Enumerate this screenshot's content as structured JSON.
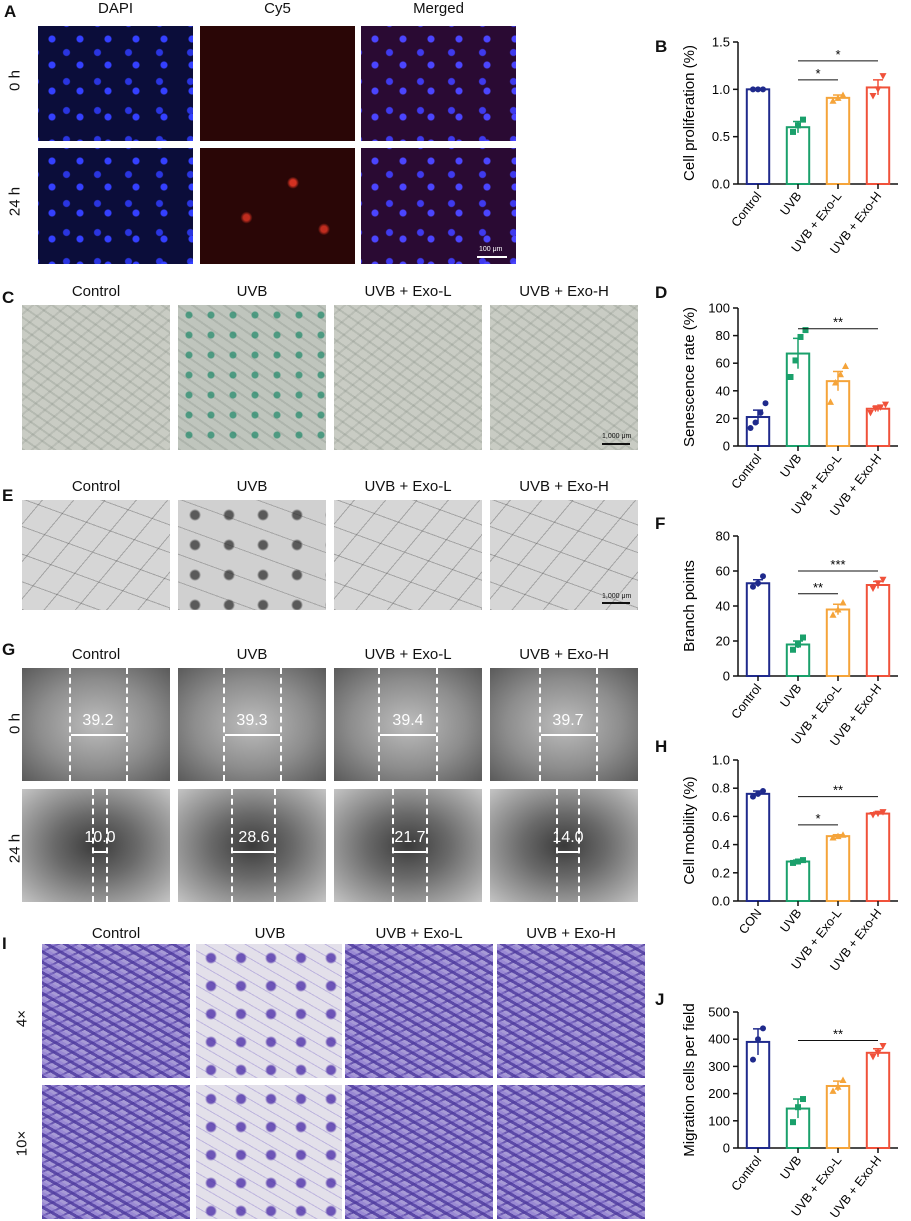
{
  "panel_labels": [
    "A",
    "B",
    "C",
    "D",
    "E",
    "F",
    "G",
    "H",
    "I",
    "J"
  ],
  "panel_a": {
    "columns": [
      "DAPI",
      "Cy5",
      "Merged"
    ],
    "rows": [
      "0 h",
      "24 h"
    ],
    "scale_bar": "100 μm"
  },
  "panel_c": {
    "columns": [
      "Control",
      "UVB",
      "UVB + Exo-L",
      "UVB + Exo-H"
    ],
    "scale_bar": "1,000 μm"
  },
  "panel_e": {
    "columns": [
      "Control",
      "UVB",
      "UVB + Exo-L",
      "UVB + Exo-H"
    ],
    "scale_bar": "1,000 μm"
  },
  "panel_g": {
    "columns": [
      "Control",
      "UVB",
      "UVB + Exo-L",
      "UVB + Exo-H"
    ],
    "rows": [
      "0 h",
      "24 h"
    ],
    "wound_widths": [
      [
        "39.2",
        "39.3",
        "39.4",
        "39.7"
      ],
      [
        "10.0",
        "28.6",
        "21.7",
        "14.0"
      ]
    ]
  },
  "panel_i": {
    "columns": [
      "Control",
      "UVB",
      "UVB + Exo-L",
      "UVB + Exo-H"
    ],
    "rows": [
      "4×",
      "10×"
    ]
  },
  "chart_data": [
    {
      "id": "B",
      "type": "bar",
      "categories": [
        "Control",
        "UVB",
        "UVB + Exo-L",
        "UVB + Exo-H"
      ],
      "values": [
        1.0,
        0.6,
        0.91,
        1.02
      ],
      "errors": [
        0.0,
        0.06,
        0.03,
        0.08
      ],
      "points": [
        [
          1.0,
          1.0,
          1.0
        ],
        [
          0.55,
          0.62,
          0.68
        ],
        [
          0.88,
          0.91,
          0.94
        ],
        [
          0.93,
          1.0,
          1.14
        ]
      ],
      "ylabel": "Cell proliferation (%)",
      "ylim": [
        0,
        1.5
      ],
      "yticks": [
        "0.0",
        "0.5",
        "1.0",
        "1.5"
      ],
      "ytick_values": [
        0,
        0.5,
        1.0,
        1.5
      ],
      "colors": [
        "#1f2a8c",
        "#1aa06b",
        "#f5a43a",
        "#f0513a"
      ],
      "significance": [
        {
          "from": 1,
          "to": 2,
          "label": "*",
          "y": 1.1
        },
        {
          "from": 1,
          "to": 3,
          "label": "*",
          "y": 1.3
        }
      ]
    },
    {
      "id": "D",
      "type": "bar",
      "categories": [
        "Control",
        "UVB",
        "UVB + Exo-L",
        "UVB + Exo-H"
      ],
      "values": [
        21,
        67,
        47,
        27
      ],
      "errors": [
        5,
        11,
        7,
        2
      ],
      "points": [
        [
          13,
          17,
          24,
          31
        ],
        [
          50,
          62,
          79,
          84
        ],
        [
          32,
          46,
          52,
          58
        ],
        [
          24,
          27,
          28,
          30
        ]
      ],
      "ylabel": "Senescence rate (%)",
      "ylim": [
        0,
        100
      ],
      "yticks": [
        "0",
        "20",
        "40",
        "60",
        "80",
        "100"
      ],
      "ytick_values": [
        0,
        20,
        40,
        60,
        80,
        100
      ],
      "colors": [
        "#1f2a8c",
        "#1aa06b",
        "#f5a43a",
        "#f0513a"
      ],
      "significance": [
        {
          "from": 1,
          "to": 3,
          "label": "**",
          "y": 85
        }
      ]
    },
    {
      "id": "F",
      "type": "bar",
      "categories": [
        "Control",
        "UVB",
        "UVB + Exo-L",
        "UVB + Exo-H"
      ],
      "values": [
        53,
        18,
        38,
        52
      ],
      "errors": [
        2,
        2,
        3,
        2
      ],
      "points": [
        [
          51,
          53,
          57
        ],
        [
          15,
          18,
          22
        ],
        [
          35,
          38,
          42
        ],
        [
          50,
          53,
          55
        ]
      ],
      "ylabel": "Branch points",
      "ylim": [
        0,
        80
      ],
      "yticks": [
        "0",
        "20",
        "40",
        "60",
        "80"
      ],
      "ytick_values": [
        0,
        20,
        40,
        60,
        80
      ],
      "colors": [
        "#1f2a8c",
        "#1aa06b",
        "#f5a43a",
        "#f0513a"
      ],
      "significance": [
        {
          "from": 1,
          "to": 2,
          "label": "**",
          "y": 47
        },
        {
          "from": 1,
          "to": 3,
          "label": "***",
          "y": 60
        }
      ]
    },
    {
      "id": "H",
      "type": "bar",
      "categories": [
        "CON",
        "UVB",
        "UVB + Exo-L",
        "UVB + Exo-H"
      ],
      "values": [
        0.76,
        0.28,
        0.46,
        0.62
      ],
      "errors": [
        0.02,
        0.01,
        0.01,
        0.01
      ],
      "points": [
        [
          0.74,
          0.76,
          0.78
        ],
        [
          0.27,
          0.28,
          0.29
        ],
        [
          0.45,
          0.46,
          0.47
        ],
        [
          0.61,
          0.62,
          0.63
        ]
      ],
      "ylabel": "Cell mobility  (%)",
      "ylim": [
        0,
        1.0
      ],
      "yticks": [
        "0.0",
        "0.2",
        "0.4",
        "0.6",
        "0.8",
        "1.0"
      ],
      "ytick_values": [
        0,
        0.2,
        0.4,
        0.6,
        0.8,
        1.0
      ],
      "colors": [
        "#1f2a8c",
        "#1aa06b",
        "#f5a43a",
        "#f0513a"
      ],
      "significance": [
        {
          "from": 1,
          "to": 2,
          "label": "*",
          "y": 0.54
        },
        {
          "from": 1,
          "to": 3,
          "label": "**",
          "y": 0.74
        }
      ]
    },
    {
      "id": "J",
      "type": "bar",
      "categories": [
        "Control",
        "UVB",
        "UVB + Exo-L",
        "UVB + Exo-H"
      ],
      "values": [
        390,
        145,
        228,
        350
      ],
      "errors": [
        48,
        35,
        18,
        15
      ],
      "points": [
        [
          325,
          400,
          440
        ],
        [
          95,
          150,
          180
        ],
        [
          210,
          225,
          250
        ],
        [
          335,
          350,
          375
        ]
      ],
      "ylabel": "Migration cells per field",
      "ylim": [
        0,
        500
      ],
      "yticks": [
        "0",
        "100",
        "200",
        "300",
        "400",
        "500"
      ],
      "ytick_values": [
        0,
        100,
        200,
        300,
        400,
        500
      ],
      "colors": [
        "#1f2a8c",
        "#1aa06b",
        "#f5a43a",
        "#f0513a"
      ],
      "significance": [
        {
          "from": 1,
          "to": 3,
          "label": "**",
          "y": 395
        }
      ]
    }
  ]
}
